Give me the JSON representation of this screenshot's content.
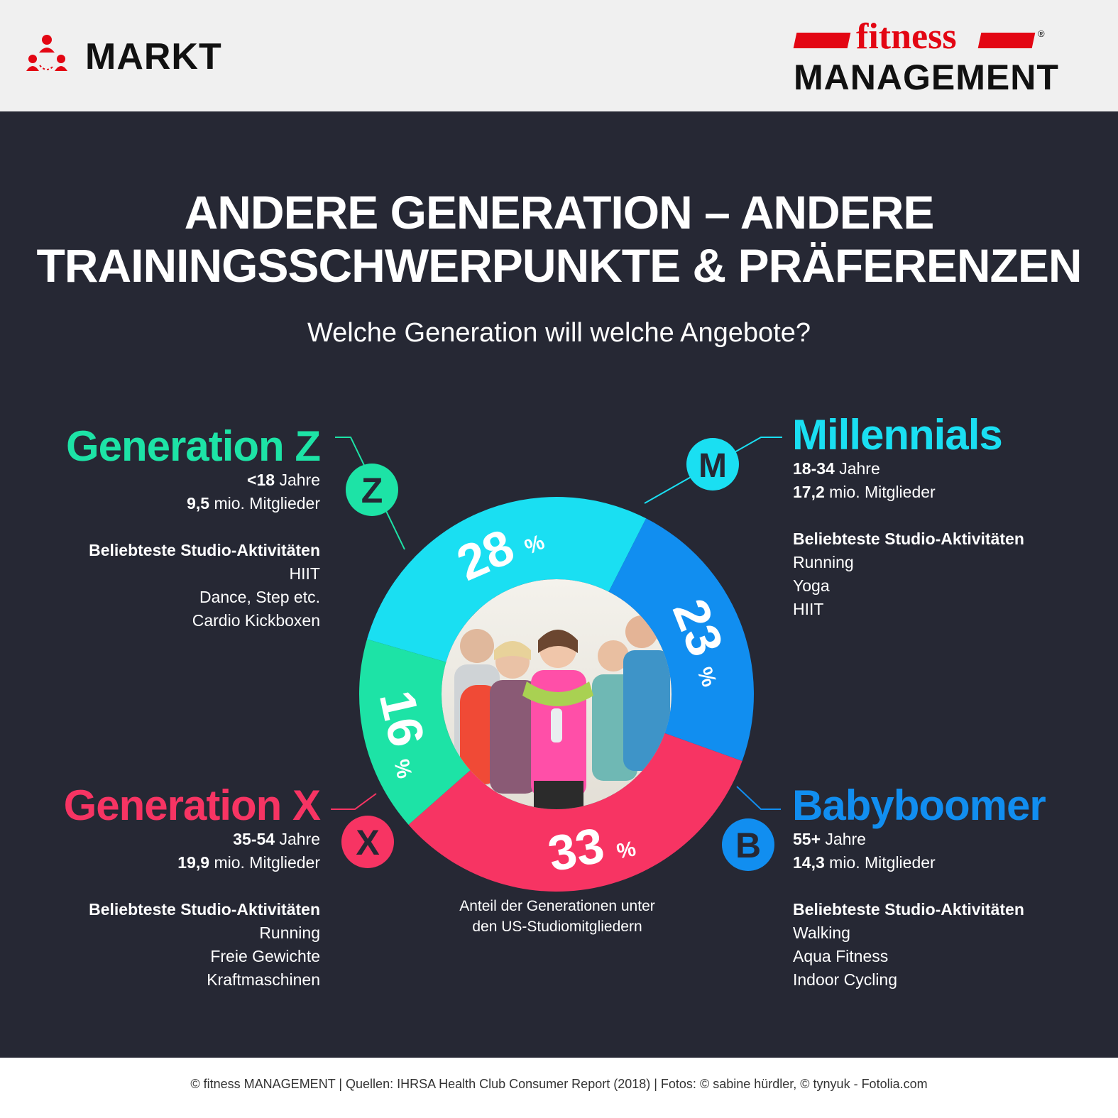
{
  "header": {
    "section_label": "MARKT",
    "brand_top": "fitness",
    "brand_bottom": "MANAGEMENT",
    "registered": "®"
  },
  "title_line1": "ANDERE GENERATION – ANDERE",
  "title_line2": "TRAININGSSCHWERPUNKTE & PRÄFERENZEN",
  "subtitle": "Welche Generation will welche Angebote?",
  "caption_line1": "Anteil der Generationen unter",
  "caption_line2": "den US-Studiomitgliedern",
  "footer": "© fitness MANAGEMENT  |  Quellen: IHRSA Health Club Consumer Report (2018)  |  Fotos: © sabine hürdler, © tynyuk - Fotolia.com",
  "colors": {
    "z": "#1de3a6",
    "m": "#1adff2",
    "b": "#118ef0",
    "x": "#f73463",
    "bg": "#262834",
    "brand_red": "#e30613"
  },
  "generations": {
    "z": {
      "name": "Generation Z",
      "badge": "Z",
      "age_bold": "<18",
      "age_rest": " Jahre",
      "members_bold": "9,5",
      "members_rest": " mio. Mitglieder",
      "activities_title": "Beliebteste Studio-Aktivitäten",
      "activities": [
        "HIIT",
        "Dance, Step etc.",
        "Cardio Kickboxen"
      ]
    },
    "m": {
      "name": "Millennials",
      "badge": "M",
      "age_bold": "18-34",
      "age_rest": " Jahre",
      "members_bold": "17,2",
      "members_rest": " mio. Mitglieder",
      "activities_title": "Beliebteste Studio-Aktivitäten",
      "activities": [
        "Running",
        "Yoga",
        "HIIT"
      ]
    },
    "x": {
      "name": "Generation X",
      "badge": "X",
      "age_bold": "35-54",
      "age_rest": " Jahre",
      "members_bold": "19,9",
      "members_rest": " mio. Mitglieder",
      "activities_title": "Beliebteste Studio-Aktivitäten",
      "activities": [
        "Running",
        "Freie Gewichte",
        "Kraftmaschinen"
      ]
    },
    "b": {
      "name": "Babyboomer",
      "badge": "B",
      "age_bold": "55+",
      "age_rest": " Jahre",
      "members_bold": "14,3",
      "members_rest": " mio. Mitglieder",
      "activities_title": "Beliebteste Studio-Aktivitäten",
      "activities": [
        "Walking",
        "Aqua Fitness",
        "Indoor Cycling"
      ]
    }
  },
  "chart_data": {
    "type": "pie",
    "variant": "donut",
    "categories": [
      "Millennials",
      "Babyboomer",
      "Generation X",
      "Generation Z"
    ],
    "values": [
      28,
      23,
      33,
      16
    ],
    "labels": [
      "28",
      "23",
      "33",
      "16"
    ],
    "unit": "%",
    "colors": [
      "#1adff2",
      "#118ef0",
      "#f73463",
      "#1de3a6"
    ]
  }
}
